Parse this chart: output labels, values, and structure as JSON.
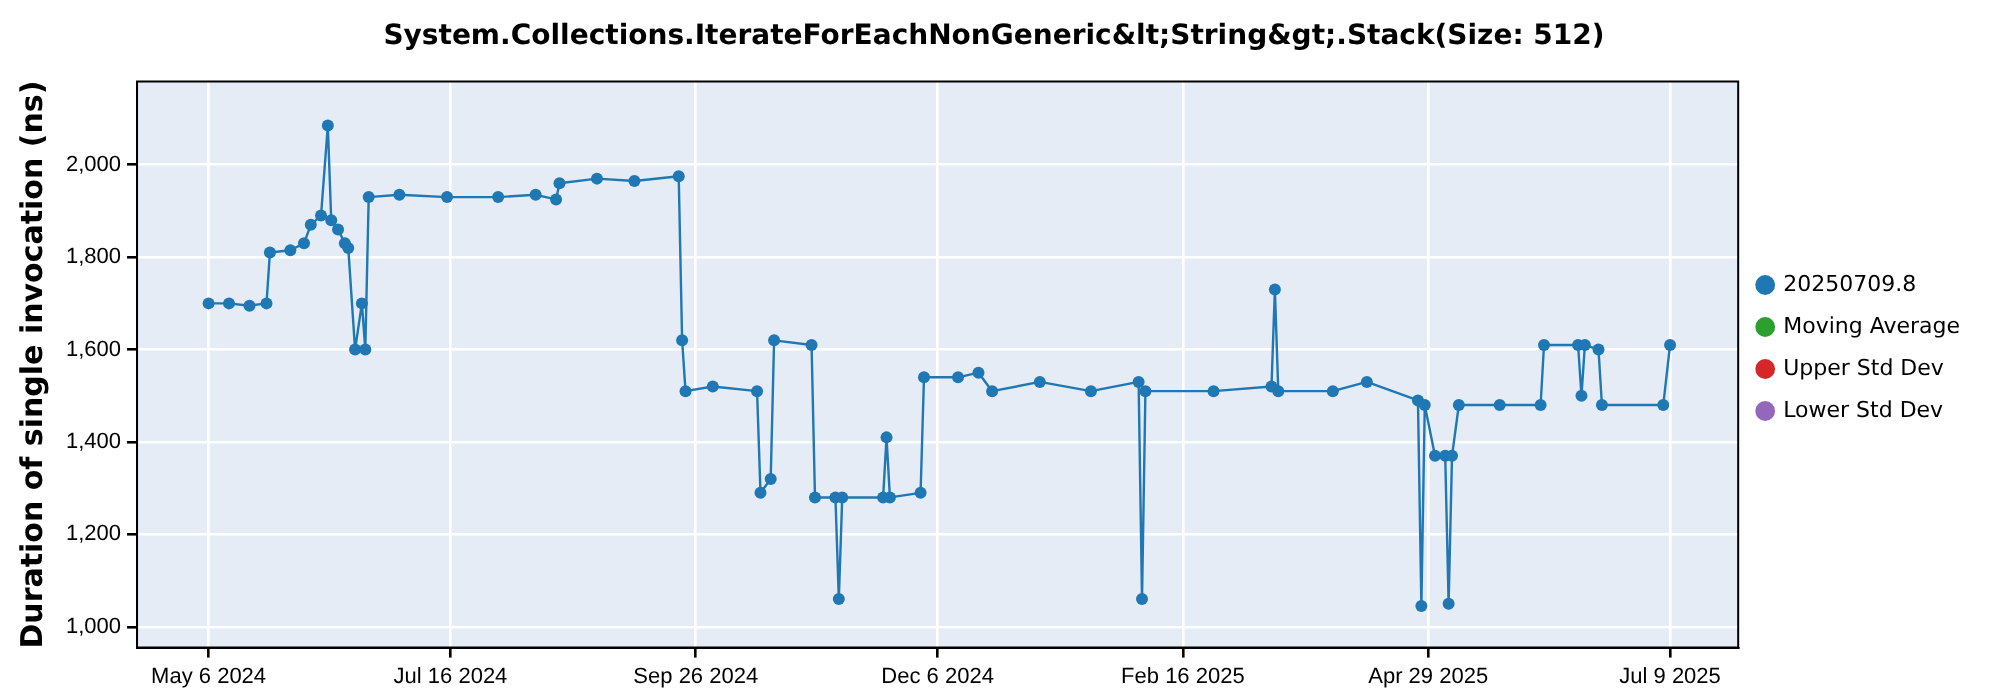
{
  "chart_data": {
    "type": "line",
    "title": "System.Collections.IterateForEachNonGeneric&lt;String&gt;.Stack(Size: 512)",
    "ylabel": "Duration of single invocation (ns)",
    "x": [
      "2024-05-06",
      "2024-05-12",
      "2024-05-18",
      "2024-05-23",
      "2024-05-24",
      "2024-05-30",
      "2024-06-03",
      "2024-06-05",
      "2024-06-08",
      "2024-06-10",
      "2024-06-11",
      "2024-06-13",
      "2024-06-15",
      "2024-06-16",
      "2024-06-18",
      "2024-06-20",
      "2024-06-21",
      "2024-06-22",
      "2024-07-01",
      "2024-07-15",
      "2024-07-30",
      "2024-08-10",
      "2024-08-16",
      "2024-08-17",
      "2024-08-28",
      "2024-09-08",
      "2024-09-21",
      "2024-09-22",
      "2024-09-23",
      "2024-10-01",
      "2024-10-14",
      "2024-10-15",
      "2024-10-18",
      "2024-10-19",
      "2024-10-30",
      "2024-10-31",
      "2024-11-06",
      "2024-11-07",
      "2024-11-08",
      "2024-11-20",
      "2024-11-21",
      "2024-11-22",
      "2024-12-01",
      "2024-12-02",
      "2024-12-12",
      "2024-12-18",
      "2024-12-22",
      "2025-01-05",
      "2025-01-20",
      "2025-02-03",
      "2025-02-04",
      "2025-02-05",
      "2025-02-25",
      "2025-03-14",
      "2025-03-15",
      "2025-03-16",
      "2025-04-01",
      "2025-04-11",
      "2025-04-26",
      "2025-04-27",
      "2025-04-28",
      "2025-05-01",
      "2025-05-04",
      "2025-05-05",
      "2025-05-06",
      "2025-05-08",
      "2025-05-20",
      "2025-06-01",
      "2025-06-02",
      "2025-06-12",
      "2025-06-13",
      "2025-06-14",
      "2025-06-18",
      "2025-06-19",
      "2025-07-07",
      "2025-07-09"
    ],
    "series": [
      {
        "name": "20250709.8",
        "color": "#1f77b4",
        "values": [
          1700,
          1700,
          1695,
          1700,
          1810,
          1815,
          1830,
          1870,
          1890,
          2085,
          1880,
          1860,
          1830,
          1820,
          1600,
          1700,
          1600,
          1930,
          1935,
          1930,
          1930,
          1935,
          1925,
          1960,
          1970,
          1965,
          1975,
          1620,
          1510,
          1520,
          1510,
          1290,
          1320,
          1620,
          1610,
          1280,
          1280,
          1060,
          1280,
          1280,
          1410,
          1280,
          1290,
          1540,
          1540,
          1550,
          1510,
          1530,
          1510,
          1530,
          1060,
          1510,
          1510,
          1520,
          1730,
          1510,
          1510,
          1530,
          1490,
          1045,
          1480,
          1370,
          1370,
          1050,
          1370,
          1480,
          1480,
          1480,
          1610,
          1610,
          1500,
          1610,
          1600,
          1480,
          1480,
          1610
        ]
      },
      {
        "name": "Moving Average",
        "color": "#2ca02c",
        "values": [
          null,
          null,
          null,
          null,
          null,
          null,
          null,
          null,
          null,
          null,
          null,
          null,
          null,
          null,
          null,
          null,
          null,
          null,
          null,
          null,
          null,
          null,
          null,
          null,
          null,
          null,
          null,
          null,
          null,
          null,
          null,
          null,
          null,
          null,
          null,
          null,
          null,
          null,
          null,
          null,
          null,
          null,
          null,
          null,
          null,
          null,
          null,
          null,
          null,
          null,
          null,
          null,
          null,
          null,
          null,
          null,
          null,
          null,
          null,
          null,
          null,
          null,
          null,
          null,
          null,
          null,
          null,
          null,
          null,
          null,
          null,
          null,
          null,
          null,
          null,
          null
        ]
      },
      {
        "name": "Upper Std Dev",
        "color": "#d62728",
        "values": [
          null,
          null,
          null,
          null,
          null,
          null,
          null,
          null,
          null,
          null,
          null,
          null,
          null,
          null,
          null,
          null,
          null,
          null,
          null,
          null,
          null,
          null,
          null,
          null,
          null,
          null,
          null,
          null,
          null,
          null,
          null,
          null,
          null,
          null,
          null,
          null,
          null,
          null,
          null,
          null,
          null,
          null,
          null,
          null,
          null,
          null,
          null,
          null,
          null,
          null,
          null,
          null,
          null,
          null,
          null,
          null,
          null,
          null,
          null,
          null,
          null,
          null,
          null,
          null,
          null,
          null,
          null,
          null,
          null,
          null,
          null,
          null,
          null,
          null,
          null,
          null
        ]
      },
      {
        "name": "Lower Std Dev",
        "color": "#9467bd",
        "values": [
          null,
          null,
          null,
          null,
          null,
          null,
          null,
          null,
          null,
          null,
          null,
          null,
          null,
          null,
          null,
          null,
          null,
          null,
          null,
          null,
          null,
          null,
          null,
          null,
          null,
          null,
          null,
          null,
          null,
          null,
          null,
          null,
          null,
          null,
          null,
          null,
          null,
          null,
          null,
          null,
          null,
          null,
          null,
          null,
          null,
          null,
          null,
          null,
          null,
          null,
          null,
          null,
          null,
          null,
          null,
          null,
          null,
          null,
          null,
          null,
          null,
          null,
          null,
          null,
          null,
          null,
          null,
          null,
          null,
          null,
          null,
          null,
          null,
          null,
          null,
          null
        ]
      }
    ],
    "xlim": [
      "2024-04-15",
      "2025-07-29"
    ],
    "xticks": [
      {
        "value": "2024-05-06",
        "label": "May 6 2024"
      },
      {
        "value": "2024-07-16",
        "label": "Jul 16 2024"
      },
      {
        "value": "2024-09-26",
        "label": "Sep 26 2024"
      },
      {
        "value": "2024-12-06",
        "label": "Dec 6 2024"
      },
      {
        "value": "2025-02-16",
        "label": "Feb 16 2025"
      },
      {
        "value": "2025-04-29",
        "label": "Apr 29 2025"
      },
      {
        "value": "2025-07-09",
        "label": "Jul 9 2025"
      }
    ],
    "ylim": [
      955,
      2180
    ],
    "yticks": [
      {
        "value": 1000,
        "label": "1,000"
      },
      {
        "value": 1200,
        "label": "1,200"
      },
      {
        "value": 1400,
        "label": "1,400"
      },
      {
        "value": 1600,
        "label": "1,600"
      },
      {
        "value": 1800,
        "label": "1,800"
      },
      {
        "value": 2000,
        "label": "2,000"
      }
    ],
    "grid": true,
    "legend": "right",
    "marker": "circle",
    "line_style": "solid"
  }
}
